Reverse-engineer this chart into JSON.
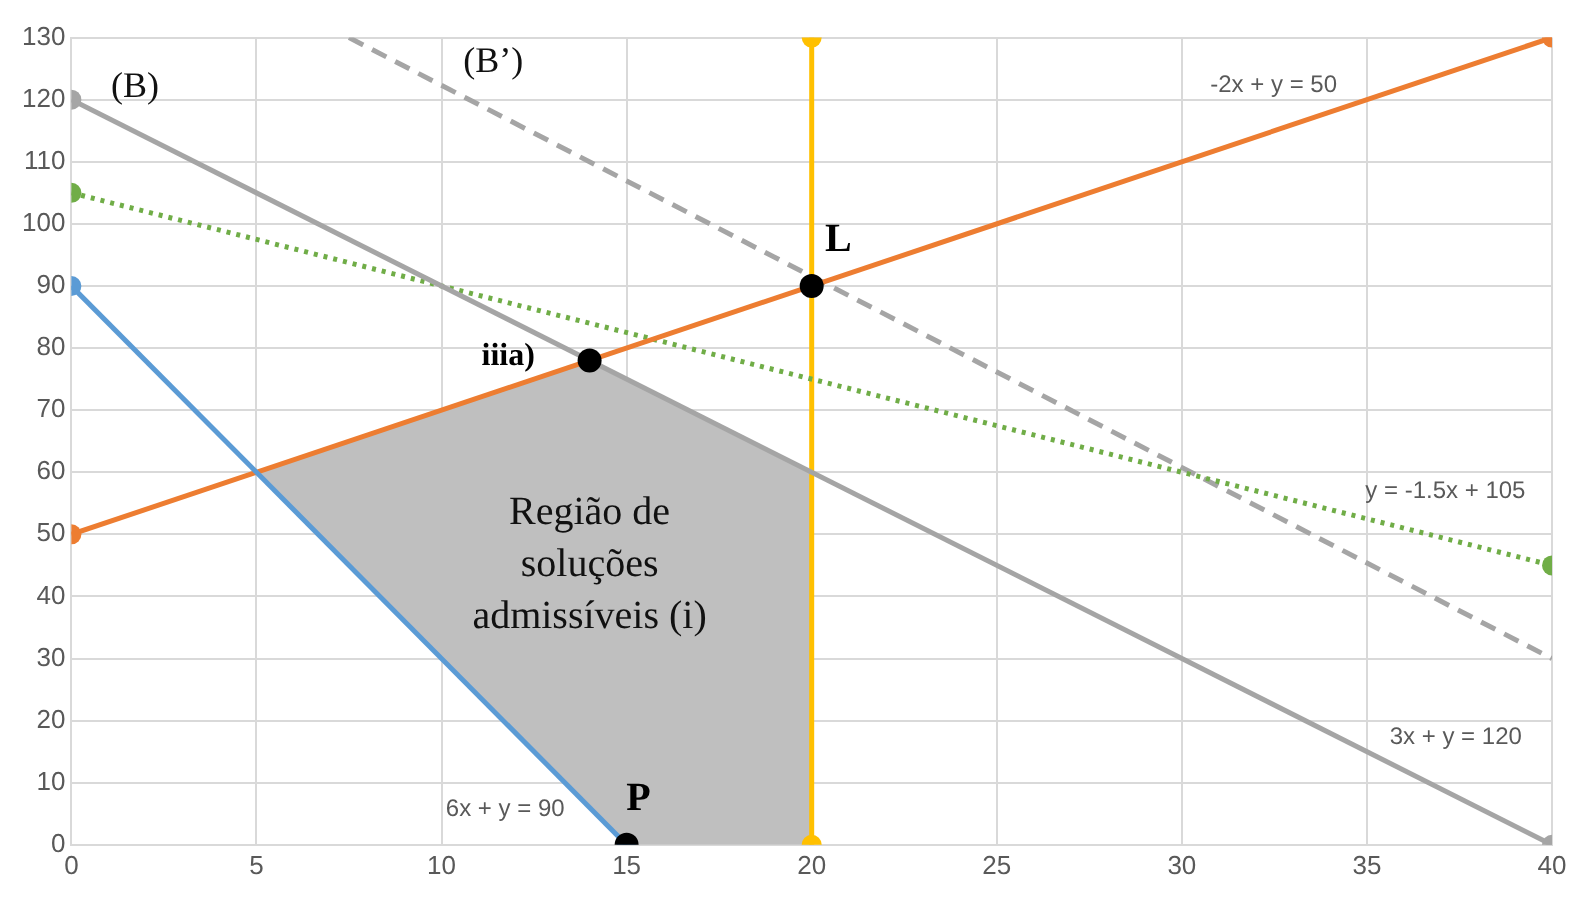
{
  "chart_data": {
    "type": "line",
    "xlim": [
      0,
      40
    ],
    "xticks": [
      0,
      5,
      10,
      15,
      20,
      25,
      30,
      35,
      40
    ],
    "ylim": [
      0,
      130
    ],
    "yticks": [
      0,
      10,
      20,
      30,
      40,
      50,
      60,
      70,
      80,
      90,
      100,
      110,
      120,
      130
    ],
    "grid": true,
    "legend": false,
    "series": [
      {
        "type": "area",
        "color": "#bfbfbf",
        "x": [
          5,
          14,
          20,
          20,
          15,
          5
        ],
        "values": [
          60,
          78,
          60,
          0,
          0,
          60
        ],
        "marker": "none"
      },
      {
        "color": "#5b9bd5",
        "x": [
          0,
          15
        ],
        "values": [
          90,
          0
        ],
        "marker": "circle",
        "line_style": "solid"
      },
      {
        "color": "#ed7d31",
        "x": [
          0,
          40
        ],
        "values": [
          50,
          130
        ],
        "marker": "circle",
        "line_style": "solid"
      },
      {
        "color": "#a5a5a5",
        "x": [
          0,
          40
        ],
        "values": [
          120,
          0
        ],
        "marker": "circle",
        "line_style": "solid"
      },
      {
        "color": "#70ad47",
        "x": [
          0,
          40
        ],
        "values": [
          105,
          45
        ],
        "marker": "circle",
        "line_style": "dotted"
      },
      {
        "color": "#ffc000",
        "x": [
          20,
          20
        ],
        "values": [
          0,
          130
        ],
        "marker": "circle",
        "line_style": "solid"
      },
      {
        "color": "#a5a5a5",
        "x": [
          7.5,
          40
        ],
        "values": [
          130,
          30
        ],
        "marker": "none",
        "line_style": "dashed"
      },
      {
        "type": "scatter",
        "color": "#000000",
        "x": [
          14,
          20,
          15
        ],
        "values": [
          78,
          90,
          0
        ],
        "marker": "circle"
      }
    ],
    "annotations": [
      "Região de soluções admissíveis (i)",
      "(B)",
      "(B’)",
      "L",
      "iiia)",
      "P",
      "-2x + y = 50",
      "y = -1.5x + 105",
      "3x + y = 120",
      "6x + y = 90"
    ]
  }
}
